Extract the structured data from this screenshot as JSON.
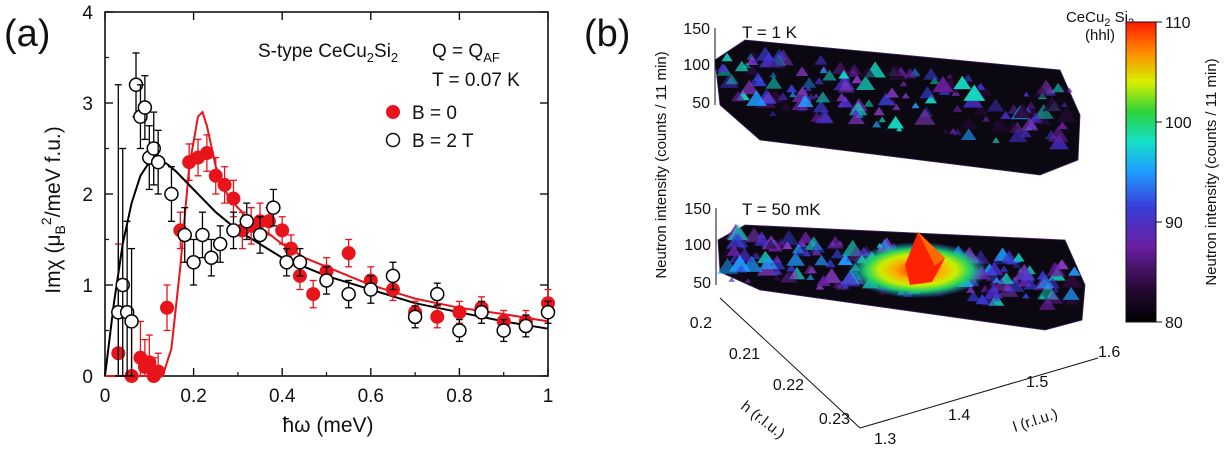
{
  "panel_a": {
    "panel_label": "(a)",
    "sample": {
      "pre": "S-type CeCu",
      "sub": "2",
      "post": "Si",
      "sub2": "2"
    },
    "q": {
      "pre": "Q = Q",
      "sub": "AF"
    },
    "temperature": "T = 0.07 K",
    "ylabel": "Imχ (μ_B²/meV f.u.)",
    "ylabel_parts": {
      "a": "Imχ (μ",
      "b": "B",
      "c": "2",
      "d": "/meV f.u.)"
    },
    "xlabel": "ħω (meV)"
  },
  "panel_b": {
    "panel_label": "(b)",
    "title_line1": "CeCu",
    "title_sub1": "2",
    "title_mid": " Si",
    "title_sub2": "2",
    "title_line2": "(hhl)",
    "upper_temp": "T = 1 K",
    "lower_temp": "T = 50 mK",
    "z_ticks": [
      "150",
      "100",
      "50"
    ],
    "ylabel": "Neutron intensity (counts / 11 min)",
    "h_ticks": [
      "0.2",
      "0.21",
      "0.22",
      "0.23"
    ],
    "h_label": "h (r.l.u.)",
    "l_ticks": [
      "1.3",
      "1.4",
      "1.5",
      "1.6"
    ],
    "l_label": "l (r.l.u.)",
    "colorbar": {
      "ticks": [
        "110",
        "100",
        "90",
        "80"
      ],
      "label": "Neutron intensity (counts / 11 min)"
    }
  },
  "chart_data": [
    {
      "type": "scatter",
      "title": "S-type CeCu2Si2 Q = QAF T = 0.07 K",
      "xlabel": "ħω (meV)",
      "ylabel": "Imχ (μB²/meV f.u.)",
      "xlim": [
        0,
        1
      ],
      "ylim": [
        0,
        4
      ],
      "xticks": [
        "0",
        "0.2",
        "0.4",
        "0.6",
        "0.8",
        "1"
      ],
      "yticks": [
        "0",
        "1",
        "2",
        "3",
        "4"
      ],
      "legend_position": "right",
      "colors": {
        "B0": "#e8141c",
        "B2T": "#000000"
      },
      "series": [
        {
          "name": "B = 0",
          "marker": "filled-circle",
          "x": [
            0.03,
            0.06,
            0.08,
            0.09,
            0.1,
            0.11,
            0.12,
            0.14,
            0.17,
            0.19,
            0.21,
            0.23,
            0.25,
            0.27,
            0.29,
            0.31,
            0.33,
            0.35,
            0.37,
            0.4,
            0.42,
            0.44,
            0.47,
            0.5,
            0.55,
            0.6,
            0.65,
            0.7,
            0.75,
            0.8,
            0.85,
            0.9,
            0.95,
            1.0
          ],
          "y": [
            0.25,
            0.0,
            0.2,
            0.1,
            0.15,
            0.0,
            0.05,
            0.75,
            1.6,
            2.35,
            2.4,
            2.45,
            2.2,
            2.1,
            1.95,
            1.6,
            1.65,
            1.7,
            1.7,
            1.6,
            1.4,
            1.1,
            0.9,
            1.15,
            1.35,
            1.05,
            0.95,
            0.7,
            0.65,
            0.7,
            0.75,
            0.6,
            0.6,
            0.8
          ],
          "err": [
            1.2,
            0.6,
            0.4,
            0.3,
            0.3,
            0.2,
            0.2,
            0.25,
            0.2,
            0.2,
            0.2,
            0.2,
            0.2,
            0.2,
            0.2,
            0.2,
            0.2,
            0.2,
            0.15,
            0.15,
            0.15,
            0.15,
            0.15,
            0.15,
            0.15,
            0.15,
            0.12,
            0.12,
            0.12,
            0.12,
            0.12,
            0.12,
            0.12,
            0.15
          ]
        },
        {
          "name": "B = 2 T",
          "marker": "open-circle",
          "x": [
            0.03,
            0.04,
            0.05,
            0.06,
            0.07,
            0.08,
            0.09,
            0.1,
            0.11,
            0.12,
            0.15,
            0.18,
            0.2,
            0.22,
            0.24,
            0.26,
            0.29,
            0.32,
            0.35,
            0.38,
            0.41,
            0.44,
            0.5,
            0.55,
            0.6,
            0.65,
            0.7,
            0.75,
            0.8,
            0.85,
            0.9,
            0.95,
            1.0
          ],
          "y": [
            0.7,
            1.0,
            0.7,
            0.6,
            3.2,
            2.85,
            2.95,
            2.4,
            2.5,
            2.35,
            2.0,
            1.55,
            1.25,
            1.55,
            1.3,
            1.45,
            1.6,
            1.7,
            1.55,
            1.85,
            1.25,
            1.25,
            1.05,
            0.9,
            0.95,
            1.1,
            0.65,
            0.9,
            0.5,
            0.7,
            0.5,
            0.55,
            0.7
          ],
          "err": [
            2.5,
            1.5,
            1.0,
            0.8,
            0.35,
            0.35,
            0.35,
            0.35,
            0.4,
            0.35,
            0.3,
            0.3,
            0.25,
            0.25,
            0.2,
            0.2,
            0.2,
            0.2,
            0.2,
            0.2,
            0.15,
            0.15,
            0.15,
            0.15,
            0.15,
            0.15,
            0.12,
            0.12,
            0.12,
            0.12,
            0.12,
            0.12,
            0.12
          ]
        }
      ],
      "fits": [
        {
          "series": "B = 0",
          "color": "#e8141c",
          "x": [
            0,
            0.1,
            0.13,
            0.15,
            0.17,
            0.19,
            0.21,
            0.22,
            0.23,
            0.25,
            0.28,
            0.32,
            0.36,
            0.4,
            0.45,
            0.5,
            0.6,
            0.7,
            0.8,
            0.9,
            1.0
          ],
          "y": [
            0,
            0,
            0,
            0.3,
            1.2,
            2.3,
            2.85,
            2.9,
            2.75,
            2.3,
            1.95,
            1.75,
            1.6,
            1.45,
            1.3,
            1.2,
            1.0,
            0.85,
            0.75,
            0.68,
            0.6
          ]
        },
        {
          "series": "B = 2 T",
          "color": "#000000",
          "x": [
            0,
            0.02,
            0.04,
            0.06,
            0.08,
            0.1,
            0.12,
            0.14,
            0.16,
            0.2,
            0.25,
            0.3,
            0.35,
            0.4,
            0.5,
            0.6,
            0.7,
            0.8,
            0.9,
            1.0
          ],
          "y": [
            0,
            0.8,
            1.45,
            1.9,
            2.2,
            2.35,
            2.38,
            2.33,
            2.25,
            2.05,
            1.8,
            1.6,
            1.45,
            1.3,
            1.1,
            0.95,
            0.8,
            0.7,
            0.6,
            0.52
          ]
        }
      ]
    }
  ]
}
